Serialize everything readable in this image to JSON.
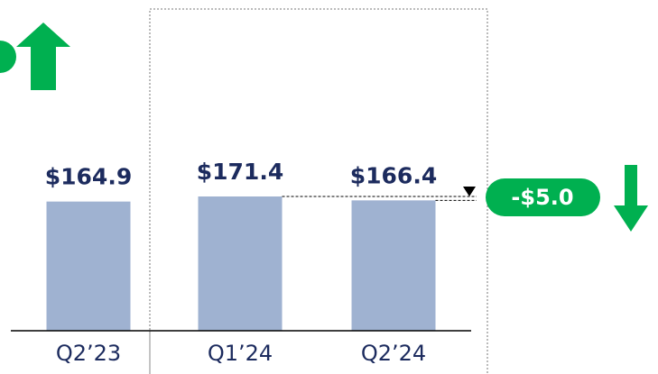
{
  "chart_data": {
    "type": "bar",
    "categories": [
      "Q2’23",
      "Q1’24",
      "Q2’24"
    ],
    "values": [
      164.9,
      171.4,
      166.4
    ],
    "value_labels": [
      "$164.9",
      "$171.4",
      "$166.4"
    ],
    "color": "#9fb2d1",
    "annotation": "-$5.0"
  }
}
